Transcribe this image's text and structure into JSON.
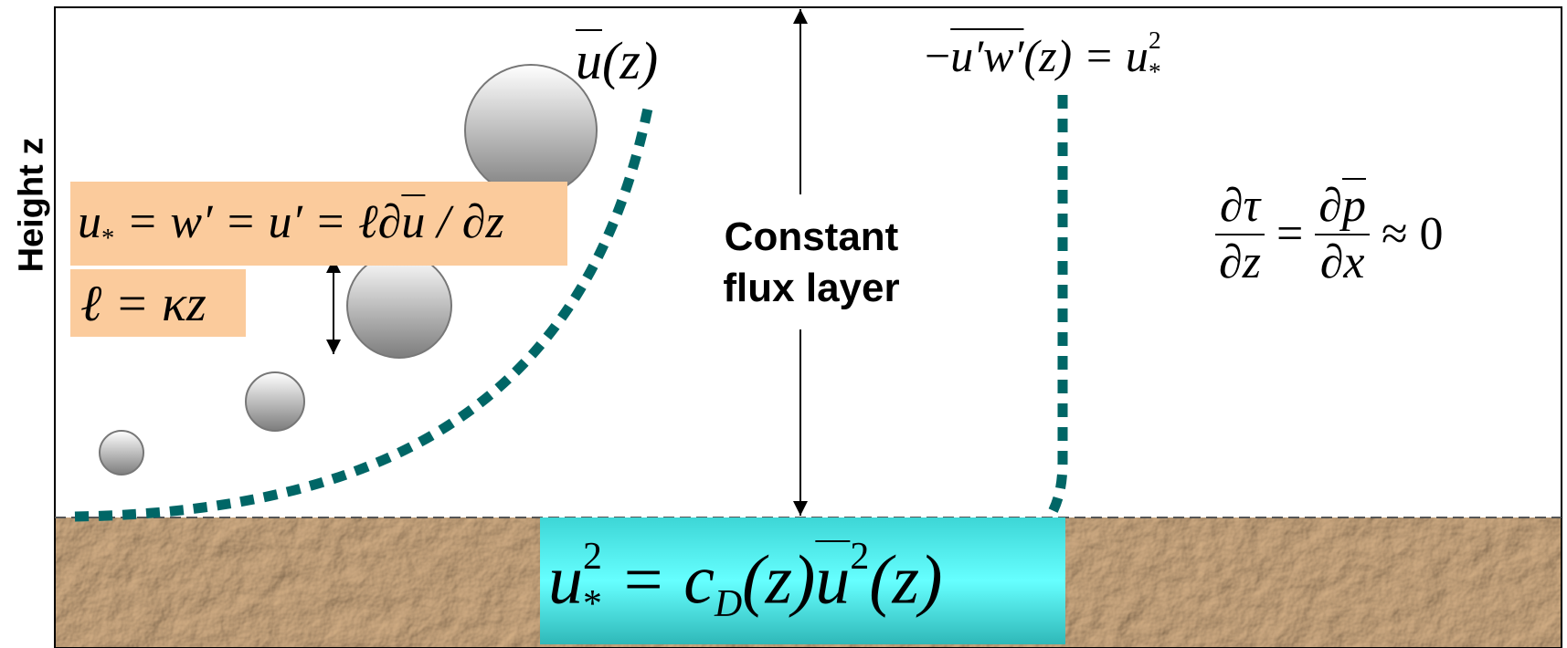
{
  "axis_label": "Height z",
  "layer_label": [
    "Constant",
    "flux layer"
  ],
  "equations": {
    "mean_wind": [
      "u",
      "(z)"
    ],
    "momentum_flux": [
      "−",
      "u′w′",
      "(z) = u",
      "*",
      "2"
    ],
    "mixing": [
      "u",
      "*",
      " = w′ = u′ = ℓ∂",
      "u",
      " / ∂z"
    ],
    "mixing_length": "ℓ = κz",
    "pressure": {
      "num1": "∂τ",
      "den1": "∂z",
      "eq": "=",
      "num2": [
        "∂",
        "p"
      ],
      "den2": "∂x",
      "approx": "≈ 0"
    },
    "drag": [
      "u",
      "*",
      "2",
      " = c",
      "D",
      "(z)",
      "u",
      "2",
      "(z)"
    ]
  }
}
